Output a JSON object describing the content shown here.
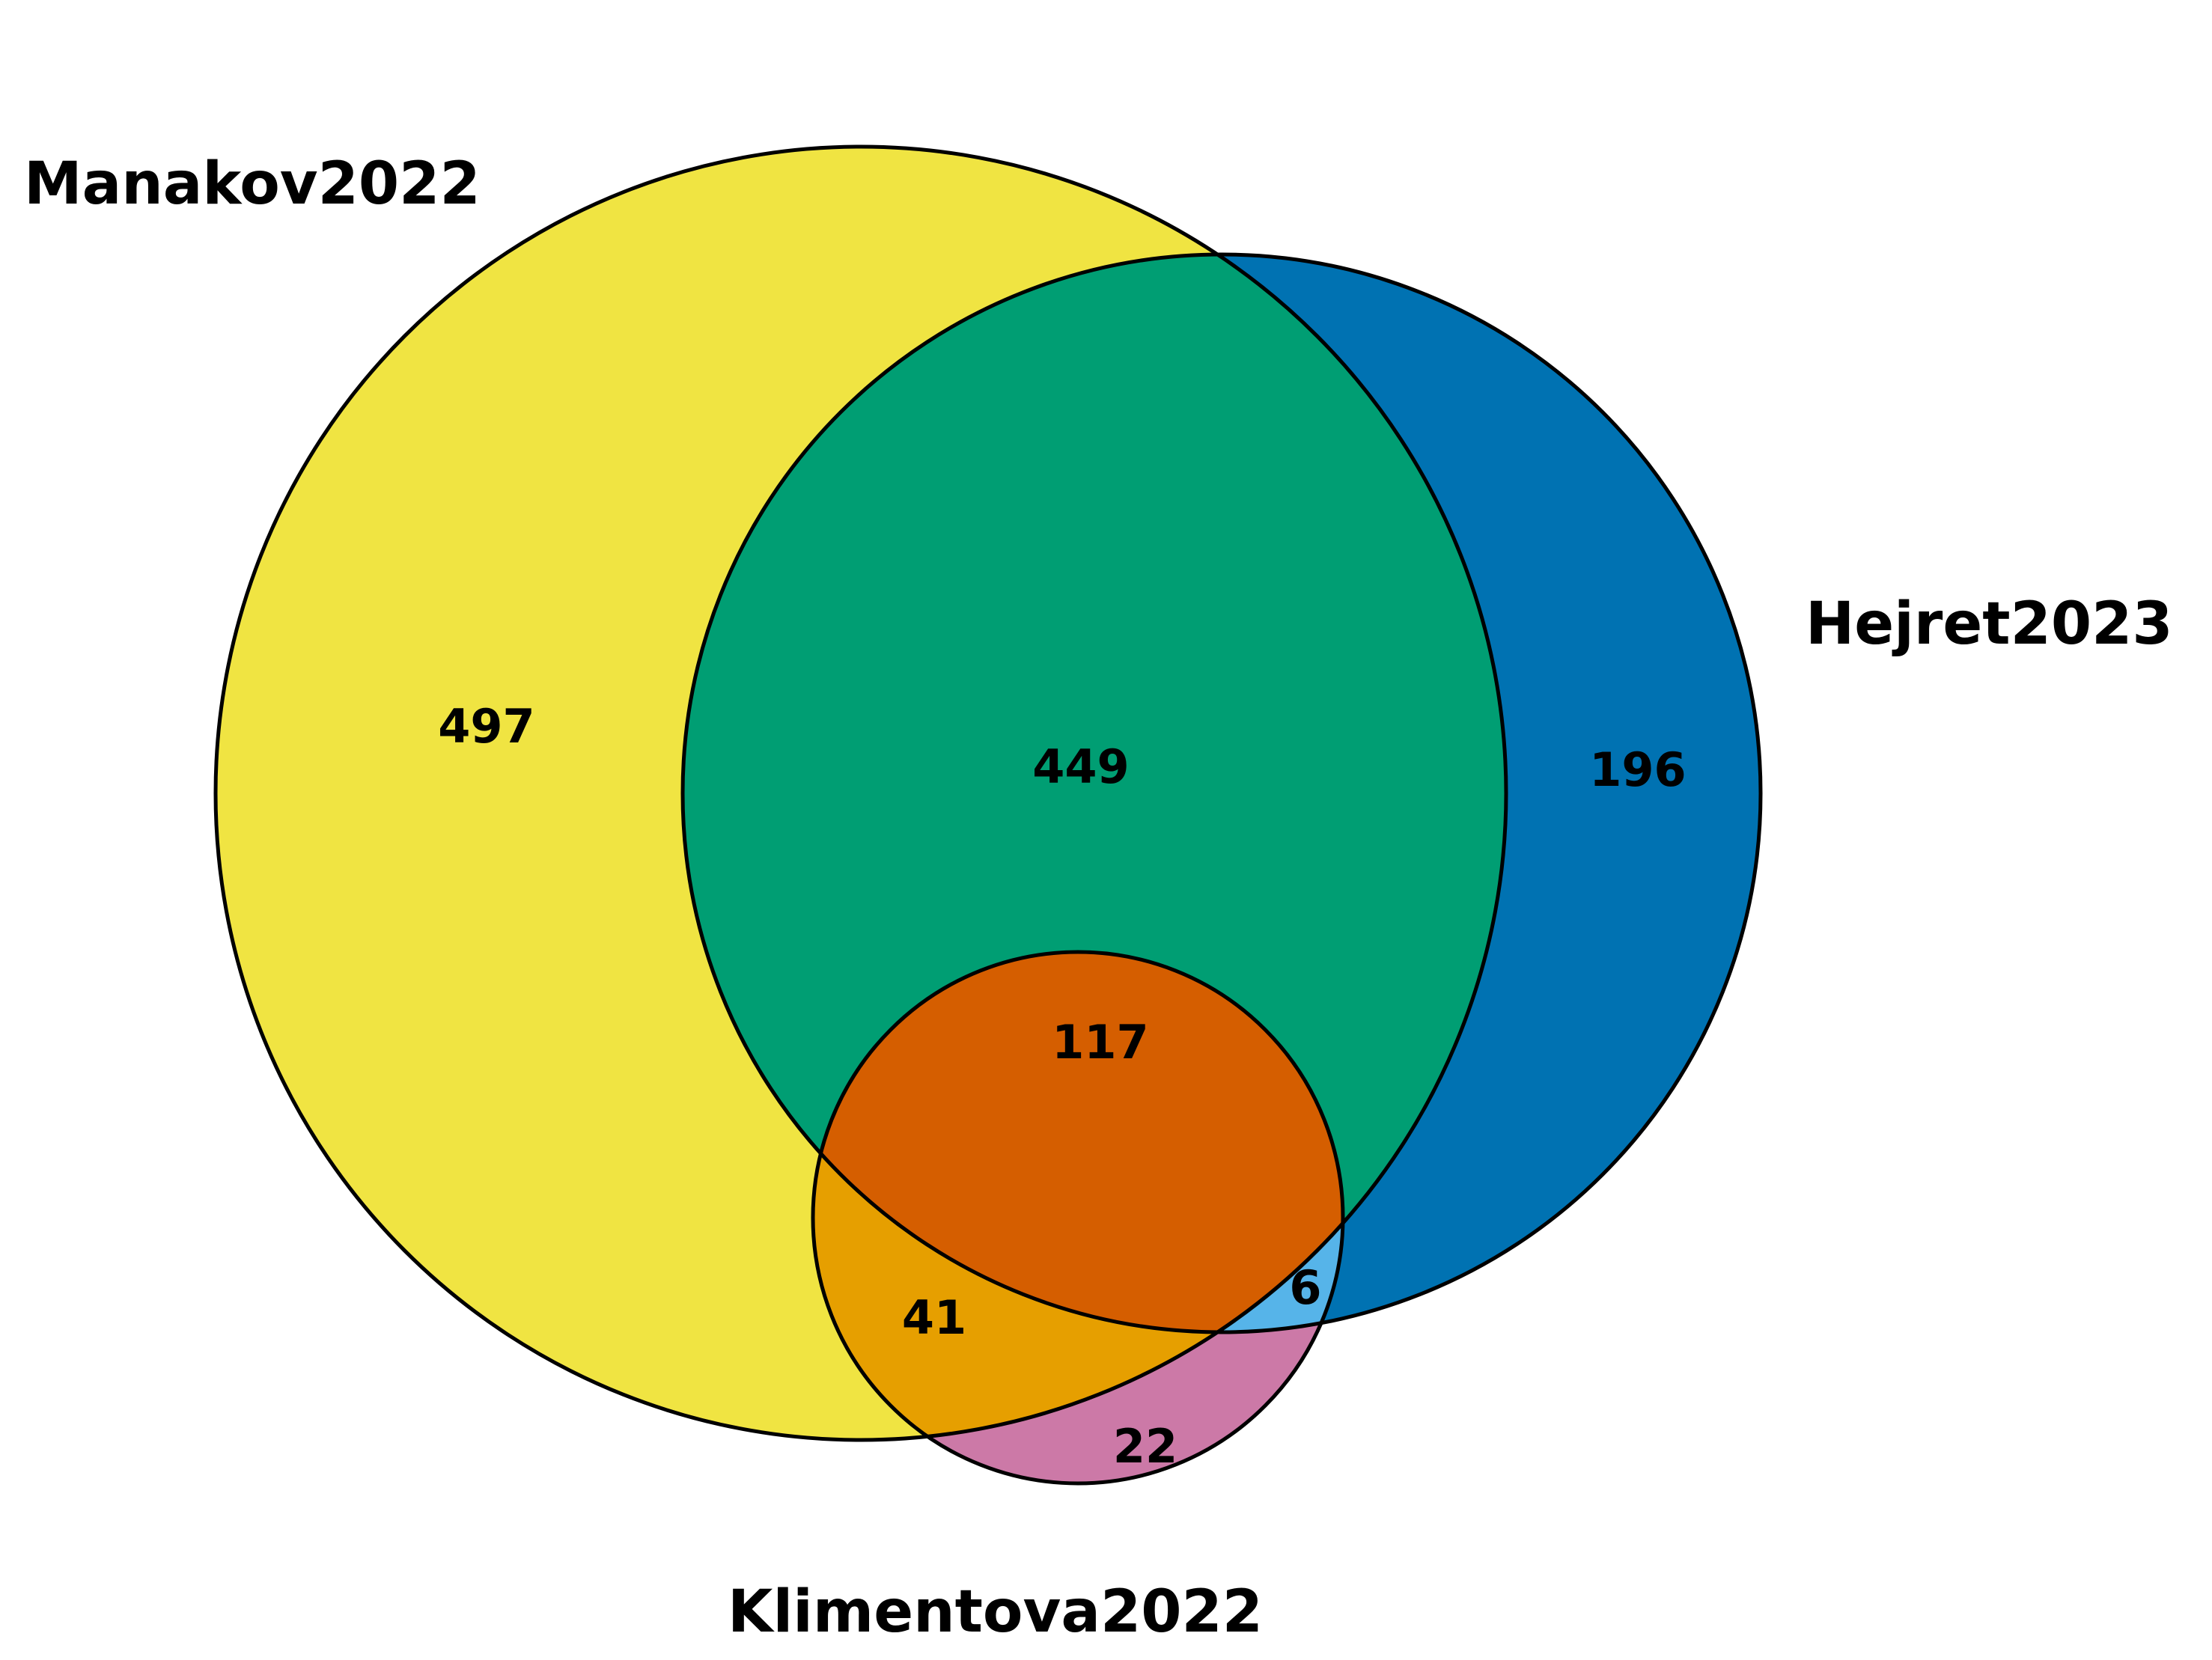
{
  "sets": [
    {
      "key": "M",
      "name": "Manakov2022",
      "color": "#F0E442"
    },
    {
      "key": "H",
      "name": "Hejret2023",
      "color": "#0072B2"
    },
    {
      "key": "K",
      "name": "Klimentova2022",
      "color": "#CC79A7"
    }
  ],
  "regions": {
    "M_only": {
      "count": "497",
      "color": "#F0E442"
    },
    "H_only": {
      "count": "196",
      "color": "#0072B2"
    },
    "K_only": {
      "count": "22",
      "color": "#CC79A7"
    },
    "M_H": {
      "count": "449",
      "color": "#009E73"
    },
    "M_K": {
      "count": "41",
      "color": "#E69F00"
    },
    "H_K": {
      "count": "6",
      "color": "#56B4E9"
    },
    "M_H_K": {
      "count": "117",
      "color": "#D55E00"
    }
  }
}
